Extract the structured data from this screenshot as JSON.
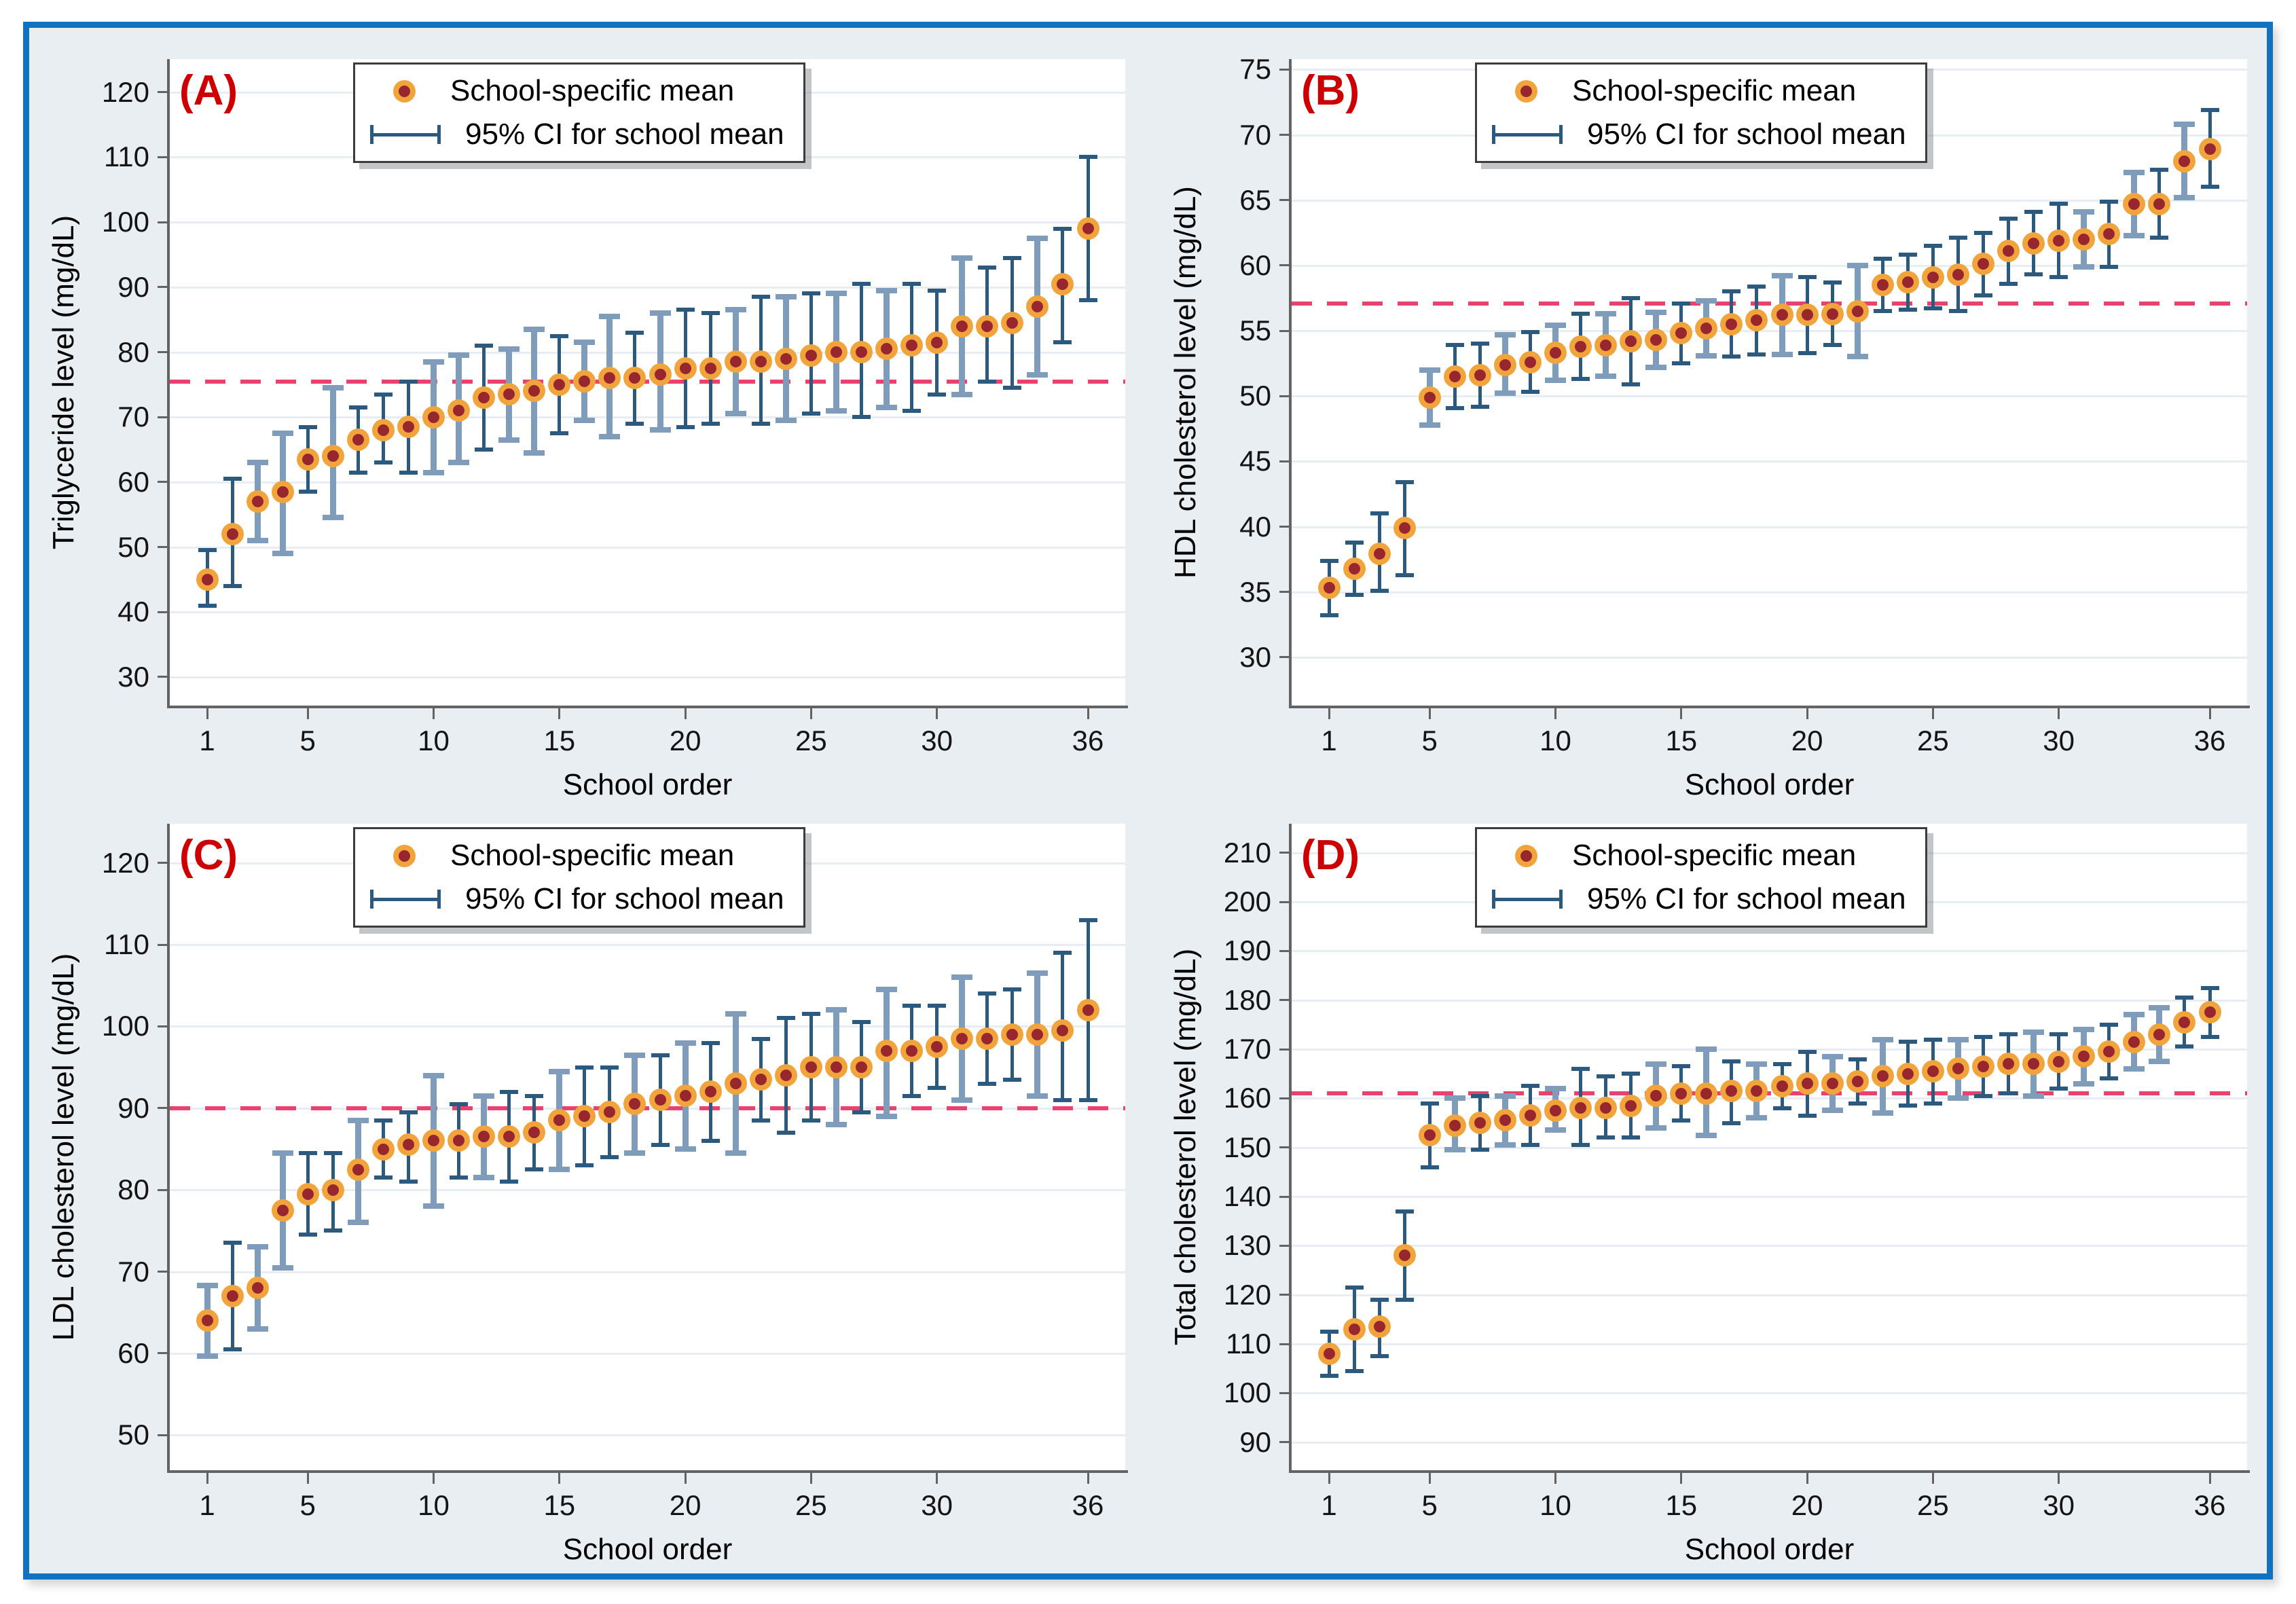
{
  "figure": {
    "xlabel": "School order",
    "legend": {
      "marker_label": "School-specific mean",
      "ci_label": "95% CI for school mean"
    },
    "colors": {
      "frame_blue": "#1173bf",
      "background": "#e9eef2",
      "plot_bg": "#ffffff",
      "gridline": "#e7edf2",
      "axis_gray": "#636363",
      "marker_core": "#97262e",
      "marker_ring": "#f1a43b",
      "ci_dark": "#2c5a7f",
      "ci_light": "#7f9dba",
      "ref_line": "#e8436f",
      "panel_letter_red": "#cc0001"
    }
  },
  "chart_data": [
    {
      "type": "scatter",
      "panel": "(A)",
      "ylabel": "Triglyceride level (mg/dL)",
      "xlabel": "School order",
      "yticks": [
        30,
        40,
        50,
        60,
        70,
        80,
        90,
        100,
        110,
        120
      ],
      "xticks": [
        1,
        5,
        10,
        15,
        20,
        25,
        30,
        36
      ],
      "ylim": [
        25.6,
        125.1
      ],
      "ref_line": 75.5,
      "x": [
        1,
        2,
        3,
        4,
        5,
        6,
        7,
        8,
        9,
        10,
        11,
        12,
        13,
        14,
        15,
        16,
        17,
        18,
        19,
        20,
        21,
        22,
        23,
        24,
        25,
        26,
        27,
        28,
        29,
        30,
        31,
        32,
        33,
        34,
        35,
        36
      ],
      "means": [
        45,
        52,
        57,
        58.5,
        63.5,
        64,
        66.5,
        68,
        68.5,
        70,
        71,
        73,
        73.5,
        74,
        75,
        75.5,
        76,
        76,
        76.5,
        77.5,
        77.5,
        78.5,
        78.5,
        79,
        79.5,
        80,
        80,
        80.5,
        81,
        81.5,
        84,
        84,
        84.5,
        87,
        90.5,
        99
      ],
      "ci_low": [
        41,
        44,
        51,
        49,
        58.5,
        54.5,
        61.5,
        63,
        61.5,
        61.5,
        63,
        65,
        66.5,
        64.5,
        67.5,
        69.5,
        67,
        69,
        68,
        68.5,
        69,
        70.5,
        69,
        69.5,
        70.5,
        71,
        70,
        71.5,
        71,
        73.5,
        73.5,
        75.5,
        74.5,
        76.5,
        81.5,
        88
      ],
      "ci_high": [
        49.5,
        60.5,
        63,
        67.5,
        68.5,
        74.5,
        71.5,
        73.5,
        75.5,
        78.5,
        79.5,
        81,
        80.5,
        83.5,
        82.5,
        81.5,
        85.5,
        83,
        86,
        86.5,
        86,
        86.5,
        88.5,
        88.5,
        89,
        89,
        90.5,
        89.5,
        90.5,
        89.5,
        94.5,
        93,
        94.5,
        97.5,
        99,
        110
      ],
      "light_ci": [
        3,
        4,
        6,
        10,
        11,
        13,
        14,
        16,
        17,
        19,
        22,
        24,
        26,
        28,
        31,
        34
      ]
    },
    {
      "type": "scatter",
      "panel": "(B)",
      "ylabel": "HDL cholesterol level (mg/dL)",
      "xlabel": "School order",
      "yticks": [
        30,
        35,
        40,
        45,
        50,
        55,
        60,
        65,
        70,
        75
      ],
      "xticks": [
        1,
        5,
        10,
        15,
        20,
        25,
        30,
        36
      ],
      "ylim": [
        26.3,
        75.8
      ],
      "ref_line": 57.1,
      "x": [
        1,
        2,
        3,
        4,
        5,
        6,
        7,
        8,
        9,
        10,
        11,
        12,
        13,
        14,
        15,
        16,
        17,
        18,
        19,
        20,
        21,
        22,
        23,
        24,
        25,
        26,
        27,
        28,
        29,
        30,
        31,
        32,
        33,
        34,
        35,
        36
      ],
      "means": [
        35.3,
        36.8,
        37.9,
        39.9,
        49.9,
        51.5,
        51.6,
        52.4,
        52.6,
        53.3,
        53.8,
        53.9,
        54.2,
        54.3,
        54.8,
        55.2,
        55.5,
        55.8,
        56.2,
        56.2,
        56.3,
        56.5,
        58.5,
        58.7,
        59.1,
        59.3,
        60.1,
        61.1,
        61.7,
        61.9,
        62,
        62.4,
        64.7,
        64.7,
        68,
        68.9
      ],
      "ci_low": [
        33.2,
        34.8,
        35.1,
        36.3,
        47.8,
        49.1,
        49.2,
        50.2,
        50.3,
        51.2,
        51.3,
        51.5,
        50.9,
        52.2,
        52.5,
        53.1,
        53,
        53.2,
        53.2,
        53.3,
        53.9,
        53,
        56.5,
        56.6,
        56.7,
        56.5,
        57.7,
        58.6,
        59.3,
        59.1,
        59.9,
        59.9,
        62.3,
        62.1,
        65.2,
        66
      ],
      "ci_high": [
        37.4,
        38.8,
        41,
        43.4,
        52,
        53.9,
        54,
        54.7,
        54.9,
        55.4,
        56.3,
        56.3,
        57.5,
        56.4,
        57.1,
        57.3,
        58,
        58.4,
        59.2,
        59.1,
        58.7,
        60,
        60.5,
        60.8,
        61.5,
        62.1,
        62.5,
        63.6,
        64.1,
        64.7,
        64.1,
        64.9,
        67.1,
        67.3,
        70.8,
        71.9
      ],
      "light_ci": [
        5,
        8,
        10,
        12,
        14,
        16,
        19,
        22,
        31,
        33,
        35
      ]
    },
    {
      "type": "scatter",
      "panel": "(C)",
      "ylabel": "LDL cholesterol level (mg/dL)",
      "xlabel": "School order",
      "yticks": [
        50,
        60,
        70,
        80,
        90,
        100,
        110,
        120
      ],
      "xticks": [
        1,
        5,
        10,
        15,
        20,
        25,
        30,
        36
      ],
      "ylim": [
        45.7,
        124.8
      ],
      "ref_line": 90,
      "x": [
        1,
        2,
        3,
        4,
        5,
        6,
        7,
        8,
        9,
        10,
        11,
        12,
        13,
        14,
        15,
        16,
        17,
        18,
        19,
        20,
        21,
        22,
        23,
        24,
        25,
        26,
        27,
        28,
        29,
        30,
        31,
        32,
        33,
        34,
        35,
        36
      ],
      "means": [
        64,
        67,
        68,
        77.5,
        79.5,
        80,
        82.5,
        85,
        85.5,
        86,
        86,
        86.5,
        86.5,
        87,
        88.5,
        89,
        89.5,
        90.5,
        91,
        91.5,
        92,
        93,
        93.5,
        94,
        95,
        95,
        95,
        97,
        97,
        97.5,
        98.5,
        98.5,
        99,
        99,
        99.5,
        102
      ],
      "ci_low": [
        59.7,
        60.5,
        63,
        70.5,
        74.5,
        75,
        76,
        81.5,
        81,
        78,
        81.5,
        81.5,
        81,
        82.5,
        82.5,
        83,
        84,
        84.5,
        85.5,
        85,
        86,
        84.5,
        88.5,
        87,
        88.5,
        88,
        89.5,
        89,
        91.5,
        92.5,
        91,
        93,
        93.5,
        91.5,
        91,
        91
      ],
      "ci_high": [
        68.3,
        73.5,
        73,
        84.5,
        84.5,
        84.5,
        88.5,
        88.5,
        89.5,
        94,
        90.5,
        91.5,
        92,
        91.5,
        94.5,
        95,
        95,
        96.5,
        96.5,
        98,
        98,
        101.5,
        98.5,
        101,
        101.5,
        102,
        100.5,
        104.5,
        102.5,
        102.5,
        106,
        104,
        104.5,
        106.5,
        109,
        113
      ],
      "light_ci": [
        1,
        3,
        4,
        7,
        10,
        12,
        15,
        18,
        20,
        22,
        26,
        28,
        31,
        34
      ]
    },
    {
      "type": "scatter",
      "panel": "(D)",
      "ylabel": "Total cholesterol level (mg/dL)",
      "xlabel": "School order",
      "yticks": [
        90,
        100,
        110,
        120,
        130,
        140,
        150,
        160,
        170,
        180,
        190,
        200,
        210
      ],
      "xticks": [
        1,
        5,
        10,
        15,
        20,
        25,
        30,
        36
      ],
      "ylim": [
        84.3,
        215.9
      ],
      "ref_line": 161,
      "x": [
        1,
        2,
        3,
        4,
        5,
        6,
        7,
        8,
        9,
        10,
        11,
        12,
        13,
        14,
        15,
        16,
        17,
        18,
        19,
        20,
        21,
        22,
        23,
        24,
        25,
        26,
        27,
        28,
        29,
        30,
        31,
        32,
        33,
        34,
        35,
        36
      ],
      "means": [
        108,
        113,
        113.5,
        128,
        152.5,
        154.5,
        155,
        155.5,
        156.5,
        157.5,
        158,
        158,
        158.5,
        160.5,
        161,
        161,
        161.5,
        161.5,
        162.5,
        163,
        163,
        163.5,
        164.5,
        165,
        165.5,
        166,
        166.5,
        167,
        167,
        167.5,
        168.5,
        169.5,
        171.5,
        173,
        175.5,
        177.5
      ],
      "ci_low": [
        103.5,
        104.5,
        107.5,
        119,
        146,
        149.5,
        149.5,
        150.5,
        150.5,
        153.5,
        150.5,
        152,
        152,
        154,
        155.5,
        152.5,
        155,
        156,
        158,
        156.5,
        157.5,
        159,
        157,
        158.5,
        159,
        160,
        160.5,
        161,
        160.5,
        162,
        163,
        164,
        166,
        167.5,
        170.5,
        172.5
      ],
      "ci_high": [
        112.5,
        121.5,
        119,
        137,
        159,
        160,
        160.5,
        160.5,
        162.5,
        162,
        166,
        164.5,
        165,
        167,
        166.5,
        170,
        167.5,
        167,
        167,
        169.5,
        168.5,
        168,
        172,
        171.5,
        172,
        172,
        172.5,
        173,
        173.5,
        173,
        174,
        175,
        177,
        178.5,
        180.5,
        182.5
      ],
      "light_ci": [
        6,
        8,
        10,
        14,
        16,
        18,
        21,
        23,
        26,
        29,
        31,
        33,
        34
      ]
    }
  ]
}
